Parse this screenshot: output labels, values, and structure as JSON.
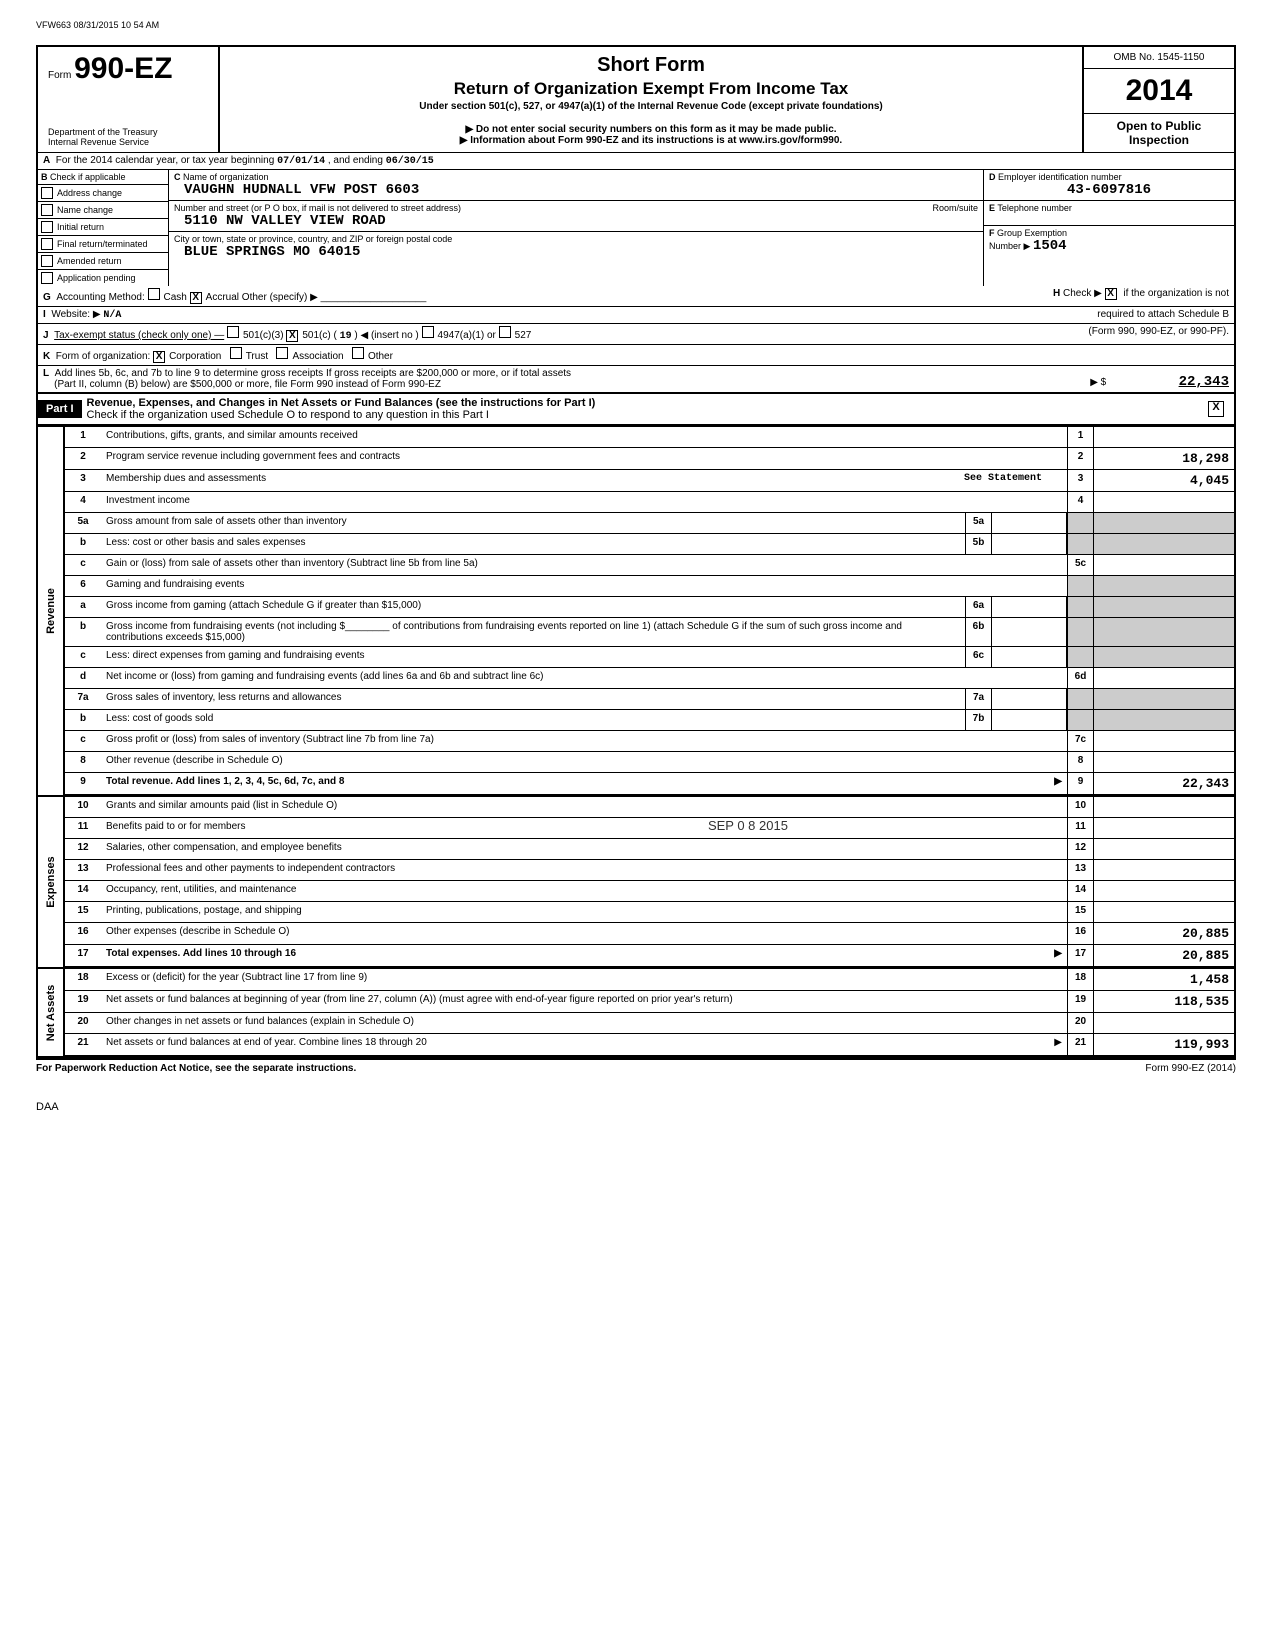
{
  "meta": {
    "topline": "VFW663 08/31/2015 10 54 AM",
    "omb": "OMB No. 1545-1150",
    "year": "2014",
    "open": "Open to Public Inspection",
    "form_prefix": "Form",
    "form_num": "990-EZ",
    "dept1": "Department of the Treasury",
    "dept2": "Internal Revenue Service",
    "title1": "Short Form",
    "title2": "Return of Organization Exempt From Income Tax",
    "subtitle1": "Under section 501(c), 527, or 4947(a)(1) of the Internal Revenue Code (except private foundations)",
    "subtitle2": "▶ Do not enter social security numbers on this form as it may be made public.",
    "subtitle3": "▶ Information about Form 990-EZ and its instructions is at www.irs.gov/form990."
  },
  "line_a": {
    "label_a": "A",
    "text": "For the 2014 calendar year, or tax year beginning",
    "begin": "07/01/14",
    "mid": ", and ending",
    "end": "06/30/15"
  },
  "checks": {
    "b": "B",
    "header": "Check if applicable",
    "addr": "Address change",
    "name": "Name change",
    "initial": "Initial return",
    "final": "Final return/terminated",
    "amended": "Amended return",
    "app": "Application pending"
  },
  "org": {
    "c_label": "C",
    "c_text": "Name of organization",
    "name": "VAUGHN HUDNALL VFW POST 6603",
    "street_label": "Number and street (or P O box, if mail is not delivered to street address)",
    "room_label": "Room/suite",
    "street": "5110 NW VALLEY VIEW ROAD",
    "city_label": "City or town, state or province, country, and ZIP or foreign postal code",
    "city": "BLUE SPRINGS          MO 64015"
  },
  "right": {
    "d_label": "D",
    "d_text": "Employer identification number",
    "ein": "43-6097816",
    "e_label": "E",
    "e_text": "Telephone number",
    "f_label": "F",
    "f_text": "Group Exemption",
    "f_num_label": "Number ▶",
    "f_num": "1504"
  },
  "lines": {
    "g": "G",
    "g_text": "Accounting Method:",
    "cash": "Cash",
    "accrual": "Accrual",
    "other_spec": "Other (specify) ▶",
    "h": "H",
    "h_text": "Check ▶",
    "h_text2": "if the organization is not",
    "i": "I",
    "i_text": "Website: ▶",
    "website": "N/A",
    "h_cont": "required to attach Schedule B",
    "j": "J",
    "j_text": "Tax-exempt status (check only one) —",
    "j_501c3": "501(c)(3)",
    "j_501c": "501(c) (",
    "j_num": "19",
    "j_insert": ") ◀ (insert no )",
    "j_4947": "4947(a)(1) or",
    "j_527": "527",
    "h_cont2": "(Form 990, 990-EZ, or 990-PF).",
    "k": "K",
    "k_text": "Form of organization:",
    "corp": "Corporation",
    "trust": "Trust",
    "assoc": "Association",
    "other": "Other",
    "l": "L",
    "l_text1": "Add lines 5b, 6c, and 7b to line 9 to determine gross receipts If gross receipts are $200,000 or more, or if total assets",
    "l_text2": "(Part II, column (B) below) are $500,000 or more, file Form 990 instead of Form 990-EZ",
    "l_arrow": "▶ $",
    "l_amount": "22,343"
  },
  "part1": {
    "label": "Part I",
    "title": "Revenue, Expenses, and Changes in Net Assets or Fund Balances (see the instructions for Part I)",
    "check": "Check if the organization used Schedule O to respond to any question in this Part I"
  },
  "categories": {
    "revenue": "Revenue",
    "expenses": "Expenses",
    "netassets": "Net Assets"
  },
  "rows": [
    {
      "n": "1",
      "desc": "Contributions, gifts, grants, and similar amounts received",
      "rn": "1",
      "amt": ""
    },
    {
      "n": "2",
      "desc": "Program service revenue including government fees and contracts",
      "rn": "2",
      "amt": "18,298"
    },
    {
      "n": "3",
      "desc": "Membership dues and assessments",
      "extra": "See Statement",
      "rn": "3",
      "amt": "4,045"
    },
    {
      "n": "4",
      "desc": "Investment income",
      "rn": "4",
      "amt": ""
    },
    {
      "n": "5a",
      "desc": "Gross amount from sale of assets other than inventory",
      "sub": "5a"
    },
    {
      "n": "b",
      "desc": "Less: cost or other basis and sales expenses",
      "sub": "5b"
    },
    {
      "n": "c",
      "desc": "Gain or (loss) from sale of assets other than inventory (Subtract line 5b from line 5a)",
      "rn": "5c",
      "amt": ""
    },
    {
      "n": "6",
      "desc": "Gaming and fundraising events"
    },
    {
      "n": "a",
      "desc": "Gross income from gaming (attach Schedule G if greater than $15,000)",
      "sub": "6a"
    },
    {
      "n": "b",
      "desc": "Gross income from fundraising events (not including $________ of contributions from fundraising events reported on line 1) (attach Schedule G if the sum of such gross income and contributions exceeds $15,000)",
      "sub": "6b"
    },
    {
      "n": "c",
      "desc": "Less: direct expenses from gaming and fundraising events",
      "sub": "6c"
    },
    {
      "n": "d",
      "desc": "Net income or (loss) from gaming and fundraising events (add lines 6a and 6b and subtract line 6c)",
      "rn": "6d",
      "amt": ""
    },
    {
      "n": "7a",
      "desc": "Gross sales of inventory, less returns and allowances",
      "sub": "7a"
    },
    {
      "n": "b",
      "desc": "Less: cost of goods sold",
      "sub": "7b"
    },
    {
      "n": "c",
      "desc": "Gross profit or (loss) from sales of inventory (Subtract line 7b from line 7a)",
      "rn": "7c",
      "amt": ""
    },
    {
      "n": "8",
      "desc": "Other revenue (describe in Schedule O)",
      "rn": "8",
      "amt": ""
    },
    {
      "n": "9",
      "desc": "Total revenue. Add lines 1, 2, 3, 4, 5c, 6d, 7c, and 8",
      "bold": true,
      "arrow": true,
      "rn": "9",
      "amt": "22,343"
    },
    {
      "n": "10",
      "desc": "Grants and similar amounts paid (list in Schedule O)",
      "rn": "10",
      "amt": ""
    },
    {
      "n": "11",
      "desc": "Benefits paid to or for members",
      "rn": "11",
      "amt": ""
    },
    {
      "n": "12",
      "desc": "Salaries, other compensation, and employee benefits",
      "rn": "12",
      "amt": ""
    },
    {
      "n": "13",
      "desc": "Professional fees and other payments to independent contractors",
      "rn": "13",
      "amt": ""
    },
    {
      "n": "14",
      "desc": "Occupancy, rent, utilities, and maintenance",
      "rn": "14",
      "amt": ""
    },
    {
      "n": "15",
      "desc": "Printing, publications, postage, and shipping",
      "rn": "15",
      "amt": ""
    },
    {
      "n": "16",
      "desc": "Other expenses (describe in Schedule O)",
      "rn": "16",
      "amt": "20,885"
    },
    {
      "n": "17",
      "desc": "Total expenses. Add lines 10 through 16",
      "bold": true,
      "arrow": true,
      "rn": "17",
      "amt": "20,885"
    },
    {
      "n": "18",
      "desc": "Excess or (deficit) for the year (Subtract line 17 from line 9)",
      "rn": "18",
      "amt": "1,458"
    },
    {
      "n": "19",
      "desc": "Net assets or fund balances at beginning of year (from line 27, column (A)) (must agree with end-of-year figure reported on prior year's return)",
      "rn": "19",
      "amt": "118,535"
    },
    {
      "n": "20",
      "desc": "Other changes in net assets or fund balances (explain in Schedule O)",
      "rn": "20",
      "amt": ""
    },
    {
      "n": "21",
      "desc": "Net assets or fund balances at end of year. Combine lines 18 through 20",
      "arrow": true,
      "rn": "21",
      "amt": "119,993"
    }
  ],
  "stamp": "SEP 0 8 2015",
  "footer": {
    "left": "For Paperwork Reduction Act Notice, see the separate instructions.",
    "right": "Form 990-EZ (2014)",
    "daa": "DAA"
  }
}
